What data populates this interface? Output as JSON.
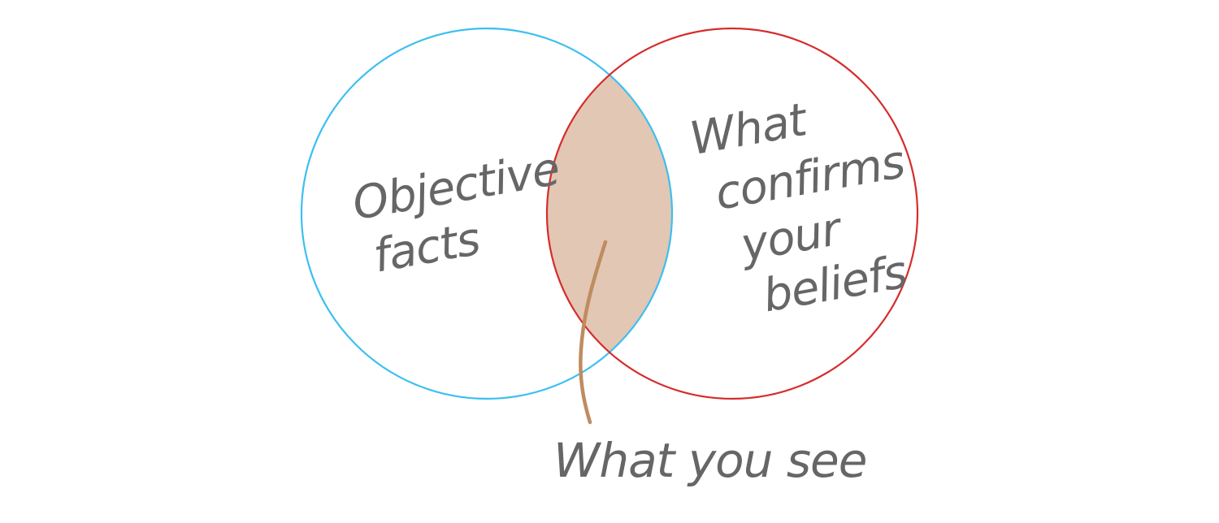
{
  "diagram": {
    "type": "venn",
    "colors": {
      "left_circle": "#3dbff0",
      "right_circle": "#d62c2c",
      "intersection_fill": "#e1c7b4",
      "pointer_line": "#bf8c60",
      "text": "#666666",
      "background": "#ffffff"
    },
    "left_set": {
      "label_lines": [
        "Objective",
        "facts"
      ]
    },
    "right_set": {
      "label_lines": [
        "What",
        "confirms",
        "your",
        "beliefs"
      ]
    },
    "intersection": {
      "label": "What you see"
    }
  }
}
